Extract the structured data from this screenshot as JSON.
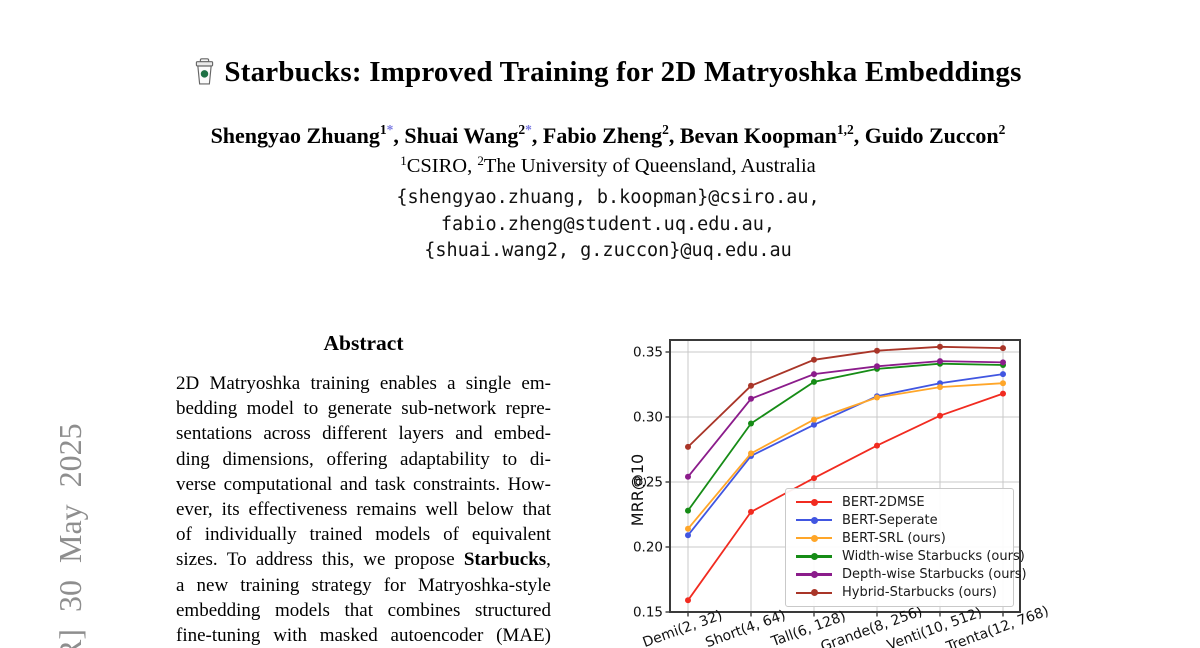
{
  "banner": {
    "text": "R] 30 May 2025",
    "color": "#8e8e8e"
  },
  "header": {
    "title": "Starbucks: Improved Training for 2D Matryoshka Embeddings",
    "title_icon": "coffee-cup-icon",
    "authors": [
      {
        "name": "Shengyao Zhuang",
        "sup": "1",
        "star": "*"
      },
      {
        "name": "Shuai Wang",
        "sup": "2",
        "star": "*"
      },
      {
        "name": "Fabio Zheng",
        "sup": "2",
        "star": ""
      },
      {
        "name": "Bevan Koopman",
        "sup": "1,2",
        "star": ""
      },
      {
        "name": "Guido Zuccon",
        "sup": "2",
        "star": ""
      }
    ],
    "author_separator": ", ",
    "star_color": "#7a7ae2",
    "affiliation": [
      {
        "sup": "1",
        "text": "CSIRO, "
      },
      {
        "sup": "2",
        "text": "The University of Queensland, Australia"
      }
    ],
    "emails": [
      "{shengyao.zhuang, b.koopman}@csiro.au,",
      "fabio.zheng@student.uq.edu.au,",
      "{shuai.wang2, g.zuccon}@uq.edu.au"
    ]
  },
  "abstract": {
    "heading": "Abstract",
    "bold_word": "Starbucks",
    "lines": [
      "2D Matryoshka training enables a single em-",
      "bedding model to generate sub-network repre-",
      "sentations across different layers and embed-",
      "ding dimensions, offering adaptability to di-",
      "verse computational and task constraints. How-",
      "ever, its effectiveness remains well below that",
      "of individually trained models of equivalent",
      "sizes. To address this, we propose Starbucks,",
      "a new training strategy for Matryoshka-style",
      "embedding models that combines structured",
      "fine-tuning with masked autoencoder (MAE)"
    ]
  },
  "chart_data": {
    "type": "line",
    "title": "",
    "xlabel": "",
    "ylabel": "MRR@10",
    "categories": [
      "Demi(2, 32)",
      "Short(4, 64)",
      "Tall(6, 128)",
      "Grande(8, 256)",
      "Venti(10, 512)",
      "Trenta(12, 768)"
    ],
    "ylim": [
      0.15,
      0.359
    ],
    "yticks": [
      0.15,
      0.2,
      0.25,
      0.3,
      0.35
    ],
    "ytick_labels": [
      "0.15",
      "0.20",
      "0.25",
      "0.30",
      "0.35"
    ],
    "grid": true,
    "legend_position": "lower-right-inside",
    "series": [
      {
        "name": "BERT-2DMSE",
        "color": "#f12b20",
        "values": [
          0.159,
          0.227,
          0.253,
          0.278,
          0.301,
          0.318
        ]
      },
      {
        "name": "BERT-Seperate",
        "color": "#4156e1",
        "values": [
          0.209,
          0.27,
          0.294,
          0.316,
          0.326,
          0.333
        ]
      },
      {
        "name": "BERT-SRL (ours)",
        "color": "#ffa629",
        "values": [
          0.214,
          0.272,
          0.298,
          0.315,
          0.323,
          0.326
        ]
      },
      {
        "name": "Width-wise Starbucks (ours)",
        "color": "#168c16",
        "values": [
          0.228,
          0.295,
          0.327,
          0.337,
          0.341,
          0.34
        ]
      },
      {
        "name": "Depth-wise Starbucks (ours)",
        "color": "#8b1c8b",
        "values": [
          0.254,
          0.314,
          0.333,
          0.339,
          0.343,
          0.342
        ]
      },
      {
        "name": "Hybrid-Starbucks (ours)",
        "color": "#a93528",
        "values": [
          0.277,
          0.324,
          0.344,
          0.351,
          0.354,
          0.353
        ]
      }
    ]
  }
}
